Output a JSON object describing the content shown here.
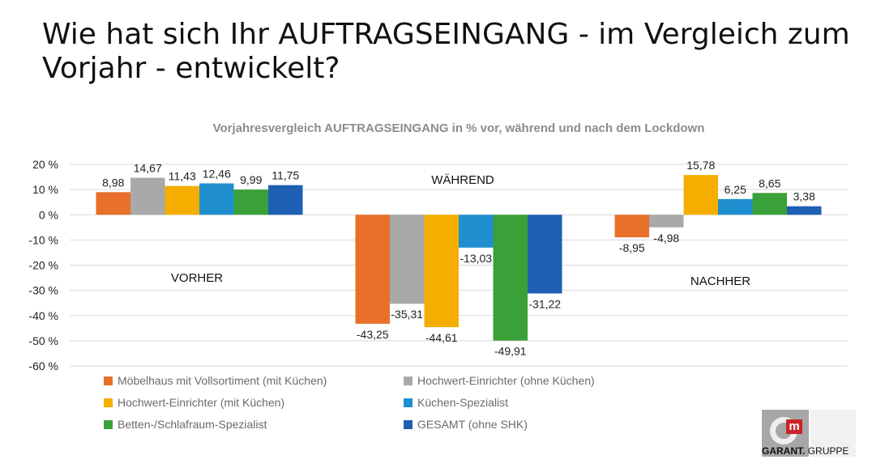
{
  "headline": "Wie hat sich Ihr AUFTRAGSEINGANG - im Vergleich zum Vorjahr - entwickelt?",
  "logo": {
    "brand": "GARANT.",
    "suffix": "GRUPPE"
  },
  "chart_data": {
    "type": "bar",
    "title": "Vorjahresvergleich AUFTRAGSEINGANG in % vor, während und nach dem Lockdown",
    "categories": [
      "VORHER",
      "WÄHREND",
      "NACHHER"
    ],
    "ylim": [
      -60,
      20
    ],
    "yticks": [
      "20 %",
      "10 %",
      "0 %",
      "-10 %",
      "-20 %",
      "-30 %",
      "-40 %",
      "-50 %",
      "-60 %"
    ],
    "ytick_values": [
      20,
      10,
      0,
      -10,
      -20,
      -30,
      -40,
      -50,
      -60
    ],
    "grid": true,
    "legend_position": "bottom",
    "series": [
      {
        "name": "Möbelhaus mit Vollsortiment (mit Küchen)",
        "color": "#e8702a",
        "values": [
          8.98,
          -43.25,
          -8.95
        ],
        "labels": [
          "8,98",
          "-43,25",
          "-8,95"
        ]
      },
      {
        "name": "Hochwert-Einrichter (ohne Küchen)",
        "color": "#a9a9a9",
        "values": [
          14.67,
          -35.31,
          -4.98
        ],
        "labels": [
          "14,67",
          "-35,31",
          "-4,98"
        ]
      },
      {
        "name": "Hochwert-Einrichter (mit Küchen)",
        "color": "#f5ae00",
        "values": [
          11.43,
          -44.61,
          15.78
        ],
        "labels": [
          "11,43",
          "-44,61",
          "15,78"
        ]
      },
      {
        "name": "Küchen-Spezialist",
        "color": "#1f8fd0",
        "values": [
          12.46,
          -13.03,
          6.25
        ],
        "labels": [
          "12,46",
          "-13,03",
          "6,25"
        ]
      },
      {
        "name": "Betten-/Schlafraum-Spezialist",
        "color": "#3aa038",
        "values": [
          9.99,
          -49.91,
          8.65
        ],
        "labels": [
          "9,99",
          "-49,91",
          "8,65"
        ]
      },
      {
        "name": "GESAMT (ohne SHK)",
        "color": "#1f5fb4",
        "values": [
          11.75,
          -31.22,
          3.38
        ],
        "labels": [
          "11,75",
          "-31,22",
          "3,38"
        ]
      }
    ]
  }
}
